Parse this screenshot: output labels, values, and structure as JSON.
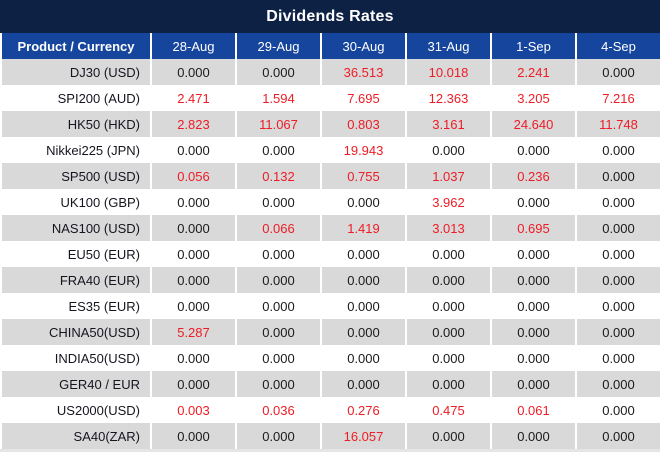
{
  "title": "Dividends Rates",
  "colors": {
    "title_bg": "#0d2144",
    "header_bg": "#15459c",
    "stripe_row": "#d9d9d9",
    "zero_value_text": "#1a1a1a",
    "nonzero_value_text": "#ee1c25",
    "header_text": "#ffffff"
  },
  "table": {
    "columns": [
      "Product / Currency",
      "28-Aug",
      "29-Aug",
      "30-Aug",
      "31-Aug",
      "1-Sep",
      "4-Sep"
    ],
    "rows": [
      {
        "product": "DJ30 (USD)",
        "values": [
          "0.000",
          "0.000",
          "36.513",
          "10.018",
          "2.241",
          "0.000"
        ]
      },
      {
        "product": "SPI200 (AUD)",
        "values": [
          "2.471",
          "1.594",
          "7.695",
          "12.363",
          "3.205",
          "7.216"
        ]
      },
      {
        "product": "HK50 (HKD)",
        "values": [
          "2.823",
          "11.067",
          "0.803",
          "3.161",
          "24.640",
          "11.748"
        ]
      },
      {
        "product": "Nikkei225 (JPN)",
        "values": [
          "0.000",
          "0.000",
          "19.943",
          "0.000",
          "0.000",
          "0.000"
        ]
      },
      {
        "product": "SP500 (USD)",
        "values": [
          "0.056",
          "0.132",
          "0.755",
          "1.037",
          "0.236",
          "0.000"
        ]
      },
      {
        "product": "UK100 (GBP)",
        "values": [
          "0.000",
          "0.000",
          "0.000",
          "3.962",
          "0.000",
          "0.000"
        ]
      },
      {
        "product": "NAS100 (USD)",
        "values": [
          "0.000",
          "0.066",
          "1.419",
          "3.013",
          "0.695",
          "0.000"
        ]
      },
      {
        "product": "EU50 (EUR)",
        "values": [
          "0.000",
          "0.000",
          "0.000",
          "0.000",
          "0.000",
          "0.000"
        ]
      },
      {
        "product": "FRA40 (EUR)",
        "values": [
          "0.000",
          "0.000",
          "0.000",
          "0.000",
          "0.000",
          "0.000"
        ]
      },
      {
        "product": "ES35 (EUR)",
        "values": [
          "0.000",
          "0.000",
          "0.000",
          "0.000",
          "0.000",
          "0.000"
        ]
      },
      {
        "product": "CHINA50(USD)",
        "values": [
          "5.287",
          "0.000",
          "0.000",
          "0.000",
          "0.000",
          "0.000"
        ]
      },
      {
        "product": "INDIA50(USD)",
        "values": [
          "0.000",
          "0.000",
          "0.000",
          "0.000",
          "0.000",
          "0.000"
        ]
      },
      {
        "product": "GER40 / EUR",
        "values": [
          "0.000",
          "0.000",
          "0.000",
          "0.000",
          "0.000",
          "0.000"
        ]
      },
      {
        "product": "US2000(USD)",
        "values": [
          "0.003",
          "0.036",
          "0.276",
          "0.475",
          "0.061",
          "0.000"
        ]
      },
      {
        "product": "SA40(ZAR)",
        "values": [
          "0.000",
          "0.000",
          "16.057",
          "0.000",
          "0.000",
          "0.000"
        ]
      }
    ]
  }
}
